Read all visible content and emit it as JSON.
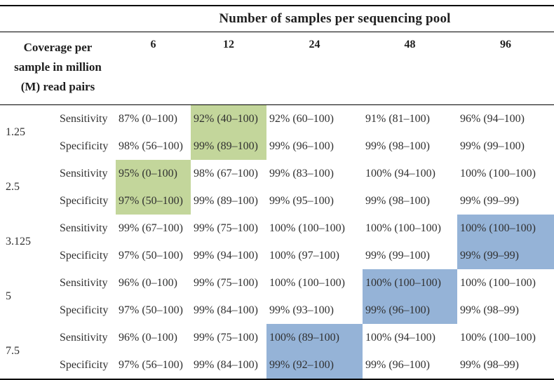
{
  "table": {
    "top_header": "Number of samples per sequencing pool",
    "coverage_header_lines": [
      "Coverage per",
      "sample in million",
      "(M) read pairs"
    ],
    "pool_sizes": [
      "6",
      "12",
      "24",
      "48",
      "96"
    ],
    "metrics": [
      "Sensitivity",
      "Specificity"
    ],
    "colors": {
      "green_highlight": "#c3d69b",
      "blue_highlight": "#95b3d7",
      "border": "#000000",
      "text": "#303030"
    },
    "rows": [
      {
        "coverage": "1.25",
        "sensitivity": [
          "87% (0–100)",
          "92% (40–100)",
          "92% (60–100)",
          "91% (81–100)",
          "96% (94–100)"
        ],
        "specificity": [
          "98% (56–100)",
          "99% (89–100)",
          "99% (96–100)",
          "99% (98–100)",
          "99% (99–100)"
        ],
        "highlight": {
          "col": 1,
          "color": "green"
        }
      },
      {
        "coverage": "2.5",
        "sensitivity": [
          "95% (0–100)",
          "98% (67–100)",
          "99% (83–100)",
          "100% (94–100)",
          "100% (100–100)"
        ],
        "specificity": [
          "97% (50–100)",
          "99% (89–100)",
          "99% (95–100)",
          "99% (98–100)",
          "99% (99–99)"
        ],
        "highlight": {
          "col": 0,
          "color": "green"
        }
      },
      {
        "coverage": "3.125",
        "sensitivity": [
          "99% (67–100)",
          "99% (75–100)",
          "100% (100–100)",
          "100% (100–100)",
          "100% (100–100)"
        ],
        "specificity": [
          "97% (50–100)",
          "99% (94–100)",
          "100% (97–100)",
          "99% (99–100)",
          "99% (99–99)"
        ],
        "highlight": {
          "col": 4,
          "color": "blue"
        }
      },
      {
        "coverage": "5",
        "sensitivity": [
          "96% (0–100)",
          "99% (75–100)",
          "100% (100–100)",
          "100% (100–100)",
          "100% (100–100)"
        ],
        "specificity": [
          "97% (50–100)",
          "99% (84–100)",
          "99% (93–100)",
          "99% (96–100)",
          "99% (98–99)"
        ],
        "highlight": {
          "col": 3,
          "color": "blue"
        }
      },
      {
        "coverage": "7.5",
        "sensitivity": [
          "96% (0–100)",
          "99% (75–100)",
          "100% (89–100)",
          "100% (94–100)",
          "100% (100–100)"
        ],
        "specificity": [
          "97% (56–100)",
          "99% (84–100)",
          "99% (92–100)",
          "99% (96–100)",
          "99% (98–99)"
        ],
        "highlight": {
          "col": 2,
          "color": "blue"
        }
      }
    ]
  }
}
